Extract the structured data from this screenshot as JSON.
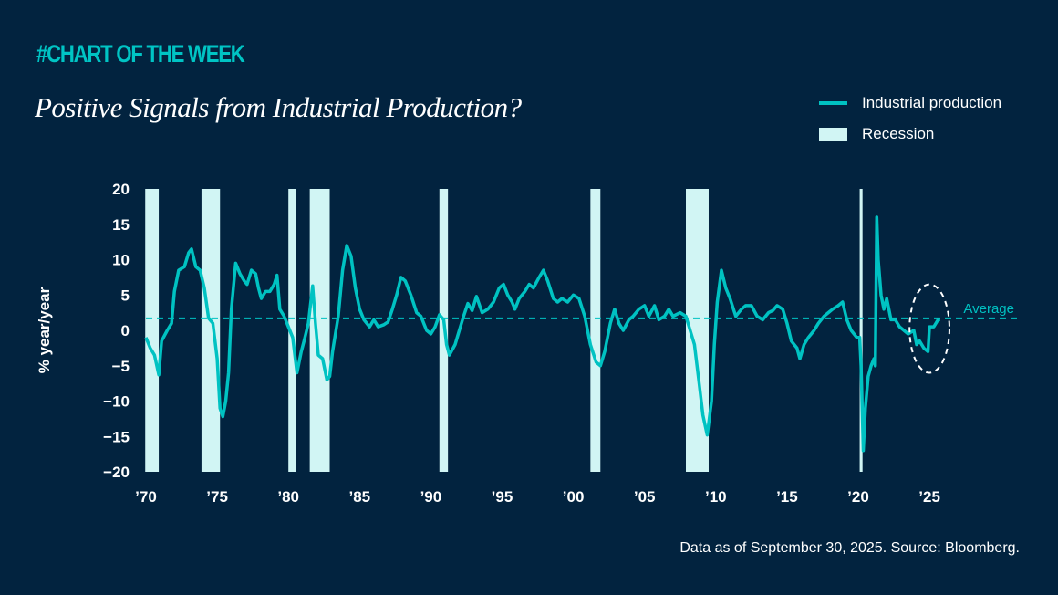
{
  "header": {
    "kicker": "#CHART OF THE WEEK",
    "title": "Positive Signals from Industrial Production?"
  },
  "legend": {
    "line_label": "Industrial production",
    "recession_label": "Recession"
  },
  "footer": {
    "source": "Data as of September 30, 2025. Source: Bloomberg."
  },
  "colors": {
    "background": "#02233f",
    "line": "#00c2c2",
    "recession": "#d1f5f4",
    "kicker": "#00c4c4",
    "highlight_ellipse": "#ffffff"
  },
  "chart_data": {
    "type": "line",
    "title": "Positive Signals from Industrial Production?",
    "xlabel": "",
    "ylabel": "% year/year",
    "xlim": [
      1970,
      2030
    ],
    "ylim": [
      -20,
      20
    ],
    "x_ticks": [
      1970,
      1975,
      1980,
      1985,
      1990,
      1995,
      2000,
      2005,
      2010,
      2015,
      2020,
      2025
    ],
    "x_tick_labels": [
      "’70",
      "’75",
      "’80",
      "’85",
      "’90",
      "’95",
      "’00",
      "’05",
      "’10",
      "’15",
      "’20",
      "’25"
    ],
    "y_ticks": [
      20,
      15,
      10,
      5,
      0,
      -5,
      -10,
      -15,
      -20
    ],
    "y_tick_labels": [
      "20",
      "15",
      "10",
      "5",
      "0",
      "−5",
      "−10",
      "−15",
      "−20"
    ],
    "grid": false,
    "legend_position": "top-right",
    "average": {
      "label": "Average",
      "value": 1.7
    },
    "highlight": {
      "shape": "dashed-ellipse",
      "x_range": [
        2023.6,
        2026.4
      ],
      "y_range": [
        -6,
        6.5
      ]
    },
    "recessions": [
      [
        1969.95,
        1970.9
      ],
      [
        1973.9,
        1975.2
      ],
      [
        1980.0,
        1980.5
      ],
      [
        1981.5,
        1982.9
      ],
      [
        1990.6,
        1991.2
      ],
      [
        2001.2,
        2001.9
      ],
      [
        2007.9,
        2009.5
      ],
      [
        2020.1,
        2020.3
      ]
    ],
    "series": [
      {
        "name": "Industrial production",
        "x": [
          1970.0,
          1970.3,
          1970.6,
          1970.9,
          1971.1,
          1971.5,
          1971.8,
          1972.0,
          1972.3,
          1972.7,
          1973.0,
          1973.2,
          1973.5,
          1973.8,
          1974.1,
          1974.4,
          1974.7,
          1975.0,
          1975.2,
          1975.4,
          1975.6,
          1975.8,
          1976.0,
          1976.3,
          1976.6,
          1976.9,
          1977.1,
          1977.4,
          1977.7,
          1977.9,
          1978.1,
          1978.4,
          1978.7,
          1979.0,
          1979.2,
          1979.4,
          1979.7,
          1980.0,
          1980.3,
          1980.6,
          1980.9,
          1981.1,
          1981.4,
          1981.7,
          1981.9,
          1982.1,
          1982.4,
          1982.7,
          1982.9,
          1983.1,
          1983.5,
          1983.8,
          1984.1,
          1984.4,
          1984.7,
          1985.0,
          1985.3,
          1985.7,
          1986.0,
          1986.3,
          1986.7,
          1987.0,
          1987.3,
          1987.6,
          1987.9,
          1988.2,
          1988.6,
          1989.0,
          1989.3,
          1989.7,
          1990.0,
          1990.3,
          1990.6,
          1990.9,
          1991.1,
          1991.3,
          1991.7,
          1992.0,
          1992.3,
          1992.6,
          1992.9,
          1993.2,
          1993.6,
          1994.0,
          1994.4,
          1994.8,
          1995.1,
          1995.4,
          1995.7,
          1995.9,
          1996.2,
          1996.6,
          1996.9,
          1997.2,
          1997.6,
          1997.9,
          1998.2,
          1998.6,
          1998.9,
          1999.2,
          1999.6,
          2000.0,
          2000.4,
          2000.8,
          2001.2,
          2001.6,
          2001.9,
          2002.2,
          2002.6,
          2002.9,
          2003.2,
          2003.5,
          2003.9,
          2004.2,
          2004.6,
          2005.0,
          2005.3,
          2005.7,
          2006.0,
          2006.4,
          2006.7,
          2007.0,
          2007.5,
          2007.9,
          2008.2,
          2008.5,
          2008.8,
          2009.1,
          2009.4,
          2009.7,
          2009.9,
          2010.1,
          2010.4,
          2010.7,
          2011.0,
          2011.4,
          2011.8,
          2012.1,
          2012.5,
          2012.9,
          2013.3,
          2013.7,
          2014.0,
          2014.3,
          2014.7,
          2015.0,
          2015.3,
          2015.7,
          2015.9,
          2016.2,
          2016.5,
          2016.9,
          2017.2,
          2017.6,
          2017.9,
          2018.2,
          2018.6,
          2018.9,
          2019.2,
          2019.5,
          2019.9,
          2020.1,
          2020.2,
          2020.35,
          2020.5,
          2020.7,
          2020.9,
          2021.1,
          2021.2,
          2021.3,
          2021.4,
          2021.6,
          2021.8,
          2022.0,
          2022.3,
          2022.6,
          2022.9,
          2023.2,
          2023.5,
          2023.9,
          2024.1,
          2024.3,
          2024.6,
          2024.9,
          2025.0,
          2025.3,
          2025.6,
          2025.75
        ],
        "values": [
          -1,
          -2.5,
          -3.5,
          -6.3,
          -1.5,
          0,
          1,
          5.5,
          8.5,
          9,
          11,
          11.5,
          9,
          8.5,
          6,
          1.7,
          1,
          -4,
          -11,
          -12.2,
          -10,
          -6,
          3,
          9.5,
          8,
          7,
          6.5,
          8.5,
          8,
          6,
          4.5,
          5.5,
          5.5,
          6.5,
          7.8,
          3,
          2,
          0.5,
          -1,
          -6,
          -3,
          -1.5,
          1,
          6.3,
          1,
          -3.5,
          -4,
          -7,
          -6.5,
          -3,
          2,
          8.5,
          12,
          10.5,
          6,
          3,
          1.5,
          0.5,
          1.5,
          0.5,
          0.8,
          1.2,
          3,
          5,
          7.5,
          7,
          5,
          2.5,
          2,
          0,
          -0.5,
          0.5,
          2.2,
          1.5,
          -2,
          -3.5,
          -2,
          0,
          2,
          3.8,
          2.8,
          4.8,
          2.5,
          3,
          4,
          6,
          6.5,
          5,
          4,
          3,
          4.5,
          5.5,
          6.5,
          6,
          7.5,
          8.5,
          7,
          4.5,
          4,
          4.5,
          4,
          5,
          4.5,
          2,
          -2,
          -4.5,
          -5,
          -3,
          1,
          3,
          1,
          0,
          1.5,
          2,
          3,
          3.5,
          2,
          3.5,
          1.5,
          2,
          3,
          2,
          2.5,
          2,
          0,
          -2,
          -7,
          -12,
          -14.8,
          -10,
          -2,
          4,
          8.5,
          6,
          4.5,
          2,
          3,
          3.5,
          3.5,
          2,
          1.5,
          2.5,
          2.8,
          3.5,
          3,
          1,
          -1.5,
          -2.5,
          -4,
          -2,
          -1,
          0,
          1,
          2,
          2.5,
          3,
          3.5,
          4,
          1.5,
          0,
          -1,
          -1,
          -5,
          -17,
          -11,
          -6.5,
          -5,
          -4,
          -5,
          16,
          10,
          5,
          3,
          4.5,
          1.5,
          1.5,
          0.5,
          0,
          -0.5,
          0,
          -2,
          -1.5,
          -2.5,
          -3,
          0.5,
          0.5,
          1.5,
          1.5
        ]
      }
    ]
  }
}
